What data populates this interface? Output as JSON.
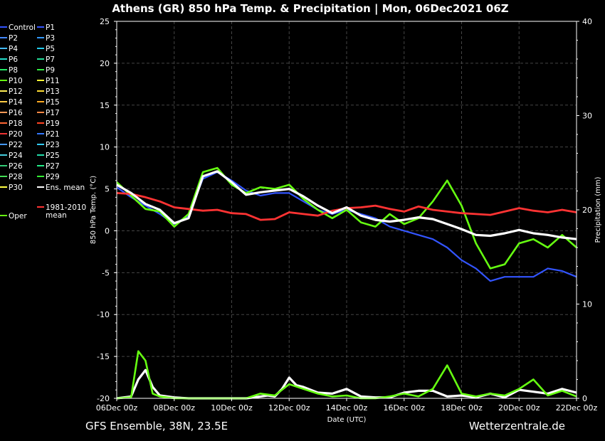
{
  "title": "Athens  (GR)  850 hPa Temp. & Precipitation | Mon, 06Dec2021 06Z",
  "footer": {
    "left": "GFS Ensemble, 38N, 23.5E",
    "right": "Wetterzentrale.de"
  },
  "colors": {
    "background": "#000000",
    "grid": "#555555",
    "text": "#ffffff"
  },
  "chart_data": {
    "type": "line",
    "x_label": "Date (UTC)",
    "y_label_left": "850 hPa Temp. (°C)",
    "y_label_right": "Precipitation (mm)",
    "xlim": [
      "06Dec 00z",
      "22Dec 00z"
    ],
    "ylim_left": [
      -20,
      25
    ],
    "ylim_right": [
      0,
      40
    ],
    "x_ticks": [
      "06Dec 00z",
      "08Dec 00z",
      "10Dec 00z",
      "12Dec 00z",
      "14Dec 00z",
      "16Dec 00z",
      "18Dec 00z",
      "20Dec 00z",
      "22Dec 00z"
    ],
    "y_ticks_left": [
      25,
      20,
      15,
      10,
      5,
      0,
      -5,
      -10,
      -15,
      -20
    ],
    "y_ticks_right": [
      40,
      30,
      20,
      10,
      0
    ],
    "grid": true,
    "legend_placement": "left",
    "legend": [
      {
        "name": "Control",
        "color": "#3355ff"
      },
      {
        "name": "P1",
        "color": "#3355ff"
      },
      {
        "name": "P2",
        "color": "#4488ff"
      },
      {
        "name": "P3",
        "color": "#3399ff"
      },
      {
        "name": "P4",
        "color": "#44bbff"
      },
      {
        "name": "P5",
        "color": "#22ccee"
      },
      {
        "name": "P6",
        "color": "#22ddcc"
      },
      {
        "name": "P7",
        "color": "#22dd99"
      },
      {
        "name": "P8",
        "color": "#22ee66"
      },
      {
        "name": "P9",
        "color": "#33ee44"
      },
      {
        "name": "P10",
        "color": "#66ff11"
      },
      {
        "name": "P11",
        "color": "#ffff33"
      },
      {
        "name": "P12",
        "color": "#ffee55"
      },
      {
        "name": "P13",
        "color": "#ffdd33"
      },
      {
        "name": "P14",
        "color": "#ffcc44"
      },
      {
        "name": "P15",
        "color": "#ffaa22"
      },
      {
        "name": "P16",
        "color": "#ff9955"
      },
      {
        "name": "P17",
        "color": "#ff8844"
      },
      {
        "name": "P18",
        "color": "#ff6633"
      },
      {
        "name": "P19",
        "color": "#ff4422"
      },
      {
        "name": "P20",
        "color": "#ee3333"
      },
      {
        "name": "P21",
        "color": "#3377ff"
      },
      {
        "name": "P22",
        "color": "#4499ff"
      },
      {
        "name": "P23",
        "color": "#33ccff"
      },
      {
        "name": "P24",
        "color": "#44ccdd"
      },
      {
        "name": "P25",
        "color": "#22ddaa"
      },
      {
        "name": "P26",
        "color": "#33cc77"
      },
      {
        "name": "P27",
        "color": "#22ee88"
      },
      {
        "name": "P28",
        "color": "#44dd55"
      },
      {
        "name": "P29",
        "color": "#33ee33"
      },
      {
        "name": "P30",
        "color": "#ffff44"
      },
      {
        "name": "Ens. mean",
        "color": "#ffffff"
      },
      {
        "name": "Oper",
        "color": "#66ff11"
      },
      {
        "name": "1981-2010 mean",
        "color": "#ff3333"
      }
    ],
    "series": [
      {
        "name": "Ens. mean",
        "color": "#ffffff",
        "x": [
          0,
          0.5,
          1,
          1.5,
          2,
          2.5,
          3,
          3.5,
          4,
          4.5,
          5,
          5.5,
          6,
          6.5,
          7,
          7.5,
          8,
          8.5,
          9,
          9.5,
          10,
          10.5,
          11,
          11.5,
          12,
          12.5,
          13,
          13.5,
          14,
          14.5,
          15,
          15.5,
          16
        ],
        "y": [
          5.5,
          4.5,
          3.2,
          2.5,
          0.9,
          1.5,
          6.5,
          7.1,
          5.8,
          4.3,
          4.6,
          4.8,
          5.0,
          4.1,
          3.0,
          2.1,
          2.8,
          1.8,
          1.3,
          1.1,
          1.3,
          1.6,
          1.4,
          0.8,
          0.2,
          -0.5,
          -0.6,
          -0.3,
          0.1,
          -0.3,
          -0.5,
          -0.8,
          -1.0
        ]
      },
      {
        "name": "1981-2010 mean",
        "color": "#ff3333",
        "x": [
          0,
          0.5,
          1,
          1.5,
          2,
          2.5,
          3,
          3.5,
          4,
          4.5,
          5,
          5.5,
          6,
          6.5,
          7,
          7.5,
          8,
          8.5,
          9,
          9.5,
          10,
          10.5,
          11,
          11.5,
          12,
          12.5,
          13,
          13.5,
          14,
          14.5,
          15,
          15.5,
          16
        ],
        "y": [
          4.5,
          4.4,
          4.0,
          3.5,
          2.8,
          2.6,
          2.4,
          2.5,
          2.1,
          2.0,
          1.3,
          1.4,
          2.2,
          2.0,
          1.8,
          2.4,
          2.7,
          2.8,
          3.0,
          2.6,
          2.3,
          2.9,
          2.5,
          2.3,
          2.1,
          2.0,
          1.9,
          2.3,
          2.7,
          2.4,
          2.2,
          2.5,
          2.2
        ]
      },
      {
        "name": "Oper",
        "color": "#66ff11",
        "x": [
          0,
          0.5,
          1,
          1.5,
          2,
          2.5,
          3,
          3.5,
          4,
          4.5,
          5,
          5.5,
          6,
          6.5,
          7,
          7.5,
          8,
          8.5,
          9,
          9.5,
          10,
          10.5,
          11,
          11.5,
          12,
          12.5,
          13,
          13.5,
          14,
          14.5,
          15,
          15.5,
          16
        ],
        "y": [
          5.8,
          4.2,
          2.6,
          2.3,
          0.5,
          2.0,
          7.0,
          7.5,
          5.5,
          4.5,
          5.2,
          5.0,
          5.5,
          3.8,
          2.5,
          1.5,
          2.5,
          1.0,
          0.5,
          2.0,
          0.8,
          1.5,
          3.5,
          6.0,
          3.0,
          -1.5,
          -4.5,
          -4.0,
          -1.5,
          -1.0,
          -2.0,
          -0.5,
          -2.0
        ]
      },
      {
        "name": "Control",
        "color": "#3355ff",
        "x": [
          0,
          0.5,
          1,
          1.5,
          2,
          2.5,
          3,
          3.5,
          4,
          4.5,
          5,
          5.5,
          6,
          6.5,
          7,
          7.5,
          8,
          8.5,
          9,
          9.5,
          10,
          10.5,
          11,
          11.5,
          12,
          12.5,
          13,
          13.5,
          14,
          14.5,
          15,
          15.5,
          16
        ],
        "y": [
          5.2,
          4.0,
          3.0,
          2.0,
          0.8,
          1.8,
          6.2,
          7.0,
          6.0,
          4.8,
          4.2,
          4.5,
          4.5,
          3.5,
          2.5,
          2.0,
          2.5,
          2.0,
          1.5,
          0.5,
          0.0,
          -0.5,
          -1.0,
          -2.0,
          -3.5,
          -4.5,
          -6.0,
          -5.5,
          -5.5,
          -5.5,
          -4.5,
          -4.8,
          -5.5
        ]
      }
    ],
    "precipitation": [
      {
        "name": "Ens. mean",
        "color": "#ffffff",
        "x": [
          0,
          0.5,
          0.75,
          1,
          1.25,
          1.5,
          2,
          2.5,
          3,
          3.5,
          4,
          4.5,
          5,
          5.25,
          5.5,
          5.75,
          6,
          6.25,
          6.5,
          7,
          7.5,
          8,
          8.5,
          9,
          9.5,
          10,
          10.5,
          11,
          11.5,
          12,
          12.5,
          13,
          13.5,
          14,
          14.5,
          15,
          15.5,
          16
        ],
        "y": [
          0,
          0.2,
          2.0,
          3.0,
          1.2,
          0.3,
          0.1,
          0,
          0,
          0,
          0,
          0,
          0.2,
          0.3,
          0.2,
          1.0,
          2.2,
          1.4,
          1.2,
          0.6,
          0.5,
          1.0,
          0.2,
          0.1,
          0.1,
          0.6,
          0.8,
          0.8,
          0.2,
          0.3,
          0.1,
          0.5,
          0.1,
          0.9,
          0.7,
          0.5,
          1.0,
          0.6
        ]
      },
      {
        "name": "Oper",
        "color": "#66ff11",
        "x": [
          0,
          0.5,
          0.75,
          1,
          1.25,
          1.5,
          2,
          2.5,
          3,
          3.5,
          4,
          4.5,
          5,
          5.5,
          6,
          6.5,
          7,
          7.5,
          8,
          8.5,
          9,
          9.5,
          10,
          10.5,
          11,
          11.5,
          12,
          12.5,
          13,
          13.5,
          14,
          14.5,
          15,
          15.5,
          16
        ],
        "y": [
          0,
          0.1,
          5.0,
          4.0,
          0.5,
          0.2,
          0,
          0,
          0,
          0,
          0,
          0,
          0.5,
          0.3,
          1.5,
          1.0,
          0.5,
          0.2,
          0.3,
          0,
          0,
          0.2,
          0.5,
          0.2,
          1.0,
          3.5,
          0.5,
          0.2,
          0.5,
          0.3,
          1.0,
          2.0,
          0.3,
          0.8,
          0.2
        ]
      }
    ]
  }
}
